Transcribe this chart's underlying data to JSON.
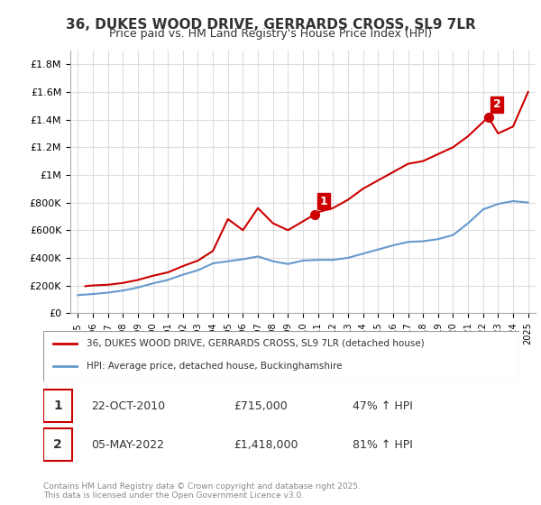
{
  "title": "36, DUKES WOOD DRIVE, GERRARDS CROSS, SL9 7LR",
  "subtitle": "Price paid vs. HM Land Registry's House Price Index (HPI)",
  "ylabel_ticks": [
    "£0",
    "£200K",
    "£400K",
    "£600K",
    "£800K",
    "£1M",
    "£1.2M",
    "£1.4M",
    "£1.6M",
    "£1.8M"
  ],
  "ylim": [
    0,
    1900000
  ],
  "xlim_start": 1995,
  "xlim_end": 2025.5,
  "legend_line1": "36, DUKES WOOD DRIVE, GERRARDS CROSS, SL9 7LR (detached house)",
  "legend_line2": "HPI: Average price, detached house, Buckinghamshire",
  "annotation1_label": "1",
  "annotation1_date": "22-OCT-2010",
  "annotation1_price": "£715,000",
  "annotation1_hpi": "47% ↑ HPI",
  "annotation2_label": "2",
  "annotation2_date": "05-MAY-2022",
  "annotation2_price": "£1,418,000",
  "annotation2_hpi": "81% ↑ HPI",
  "copyright": "Contains HM Land Registry data © Crown copyright and database right 2025.\nThis data is licensed under the Open Government Licence v3.0.",
  "red_color": "#cc0000",
  "blue_color": "#6699cc",
  "grid_color": "#dddddd",
  "bg_color": "#ffffff",
  "hpi_years": [
    1995,
    1996,
    1997,
    1998,
    1999,
    2000,
    2001,
    2002,
    2003,
    2004,
    2005,
    2006,
    2007,
    2008,
    2009,
    2010,
    2011,
    2012,
    2013,
    2014,
    2015,
    2016,
    2017,
    2018,
    2019,
    2020,
    2021,
    2022,
    2023,
    2024,
    2025
  ],
  "hpi_values": [
    130000,
    138000,
    148000,
    163000,
    185000,
    215000,
    240000,
    278000,
    310000,
    360000,
    375000,
    390000,
    410000,
    375000,
    355000,
    380000,
    385000,
    385000,
    400000,
    430000,
    460000,
    490000,
    515000,
    520000,
    535000,
    565000,
    650000,
    750000,
    790000,
    810000,
    800000
  ],
  "property_years": [
    1995.5,
    1996,
    1997,
    1998,
    1999,
    2000,
    2001,
    2002,
    2003,
    2004,
    2005,
    2006,
    2007,
    2008,
    2009,
    2010.8,
    2011,
    2012,
    2013,
    2014,
    2015,
    2016,
    2017,
    2018,
    2019,
    2020,
    2021,
    2022.35,
    2023,
    2024,
    2025
  ],
  "property_values": [
    195000,
    200000,
    205000,
    218000,
    240000,
    270000,
    295000,
    340000,
    380000,
    450000,
    680000,
    600000,
    760000,
    650000,
    600000,
    715000,
    730000,
    760000,
    820000,
    900000,
    960000,
    1020000,
    1080000,
    1100000,
    1150000,
    1200000,
    1280000,
    1418000,
    1300000,
    1350000,
    1600000
  ],
  "sale1_x": 2010.8,
  "sale1_y": 715000,
  "sale2_x": 2022.35,
  "sale2_y": 1418000
}
